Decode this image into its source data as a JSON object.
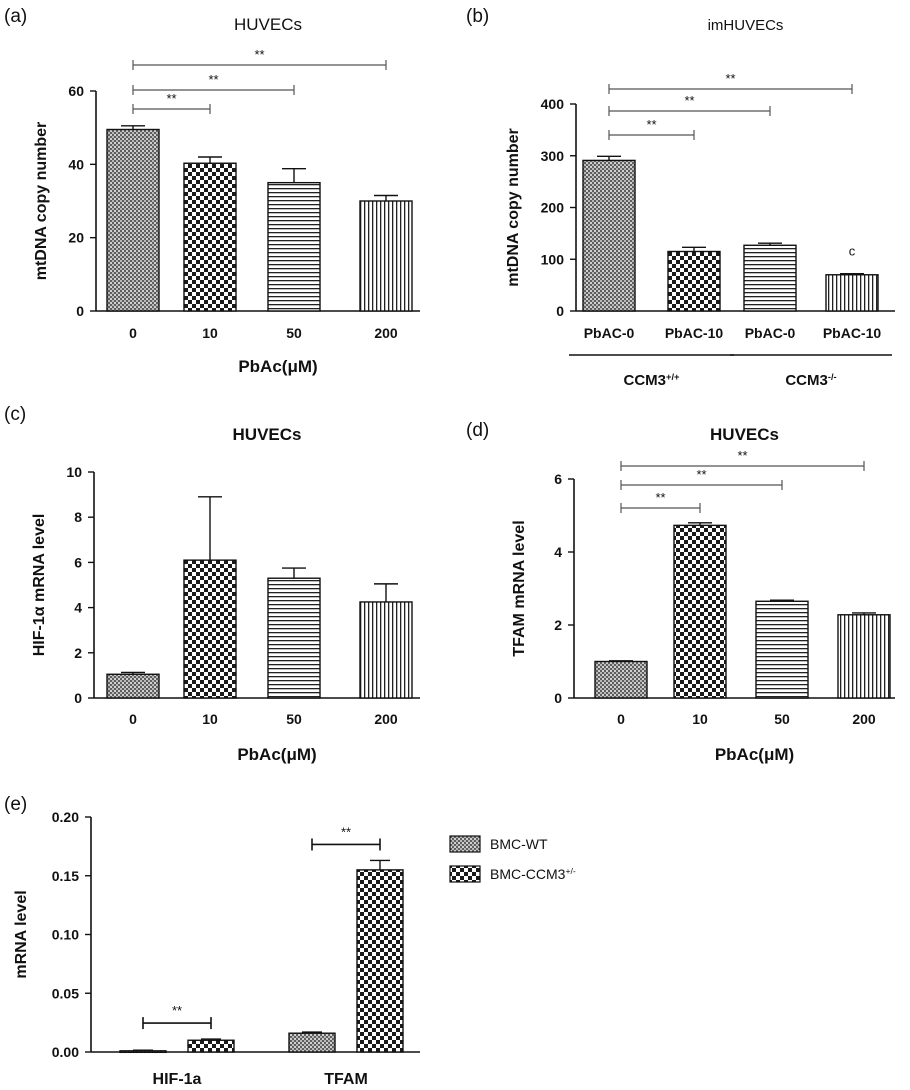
{
  "chart_data": [
    {
      "panel": "(a)",
      "type": "bar",
      "title": "HUVECs",
      "xlabel": "PbAc(μM)",
      "ylabel": "mtDNA copy number",
      "categories": [
        "0",
        "10",
        "50",
        "200"
      ],
      "values": [
        49.5,
        40.3,
        35.0,
        30.0
      ],
      "errors": [
        1.0,
        1.7,
        3.8,
        1.5
      ],
      "ylim": [
        0,
        60
      ],
      "yticks": [
        "0",
        "20",
        "40",
        "60"
      ],
      "significance": [
        {
          "from": 0,
          "to": 1,
          "label": "**"
        },
        {
          "from": 0,
          "to": 2,
          "label": "**"
        },
        {
          "from": 0,
          "to": 3,
          "label": "**"
        }
      ]
    },
    {
      "panel": "(b)",
      "type": "bar",
      "title": "imHUVECs",
      "xlabel": "",
      "ylabel": "mtDNA copy number",
      "categories": [
        "PbAC-0",
        "PbAC-10",
        "PbAC-0",
        "PbAC-10"
      ],
      "groups": [
        {
          "label": "CCM3",
          "sup": "+/+",
          "from": 0,
          "to": 1
        },
        {
          "label": "CCM3",
          "sup": "-/-",
          "from": 2,
          "to": 3
        }
      ],
      "values": [
        291,
        115,
        127,
        70
      ],
      "errors": [
        8,
        8,
        4,
        2
      ],
      "ylim": [
        0,
        400
      ],
      "yticks": [
        "0",
        "100",
        "200",
        "300",
        "400"
      ],
      "bar_annotations": [
        {
          "index": 3,
          "label": "c"
        }
      ],
      "significance": [
        {
          "from": 0,
          "to": 1,
          "label": "**"
        },
        {
          "from": 0,
          "to": 2,
          "label": "**"
        },
        {
          "from": 0,
          "to": 3,
          "label": "**"
        }
      ]
    },
    {
      "panel": "(c)",
      "type": "bar",
      "title": "HUVECs",
      "xlabel": "PbAc(μM)",
      "ylabel": "HIF-1α mRNA level",
      "categories": [
        "0",
        "10",
        "50",
        "200"
      ],
      "values": [
        1.05,
        6.1,
        5.3,
        4.25
      ],
      "errors": [
        0.08,
        2.8,
        0.45,
        0.8
      ],
      "ylim": [
        0,
        10
      ],
      "yticks": [
        "0",
        "2",
        "4",
        "6",
        "8",
        "10"
      ],
      "significance": []
    },
    {
      "panel": "(d)",
      "type": "bar",
      "title": "HUVECs",
      "xlabel": "PbAc(μM)",
      "ylabel": "TFAM mRNA level",
      "categories": [
        "0",
        "10",
        "50",
        "200"
      ],
      "values": [
        1.0,
        4.73,
        2.65,
        2.28
      ],
      "errors": [
        0.02,
        0.07,
        0.03,
        0.05
      ],
      "ylim": [
        0,
        6
      ],
      "yticks": [
        "0",
        "2",
        "4",
        "6"
      ],
      "significance": [
        {
          "from": 0,
          "to": 1,
          "label": "**"
        },
        {
          "from": 0,
          "to": 2,
          "label": "**"
        },
        {
          "from": 0,
          "to": 3,
          "label": "**"
        }
      ]
    },
    {
      "panel": "(e)",
      "type": "bar",
      "title": "",
      "xlabel": "",
      "ylabel": "mRNA level",
      "categories": [
        "HIF-1a",
        "TFAM"
      ],
      "series": [
        {
          "name": "BMC-WT",
          "values": [
            0.001,
            0.016
          ],
          "errors": [
            0.0005,
            0.001
          ]
        },
        {
          "name": "BMC-CCM3",
          "sup": "+/-",
          "values": [
            0.01,
            0.155
          ],
          "errors": [
            0.001,
            0.008
          ]
        }
      ],
      "ylim": [
        0,
        0.2
      ],
      "yticks": [
        "0.00",
        "0.05",
        "0.10",
        "0.15",
        "0.20"
      ],
      "legend_position": "right",
      "significance": [
        {
          "category": 0,
          "label": "**"
        },
        {
          "category": 1,
          "label": "**"
        }
      ]
    }
  ]
}
